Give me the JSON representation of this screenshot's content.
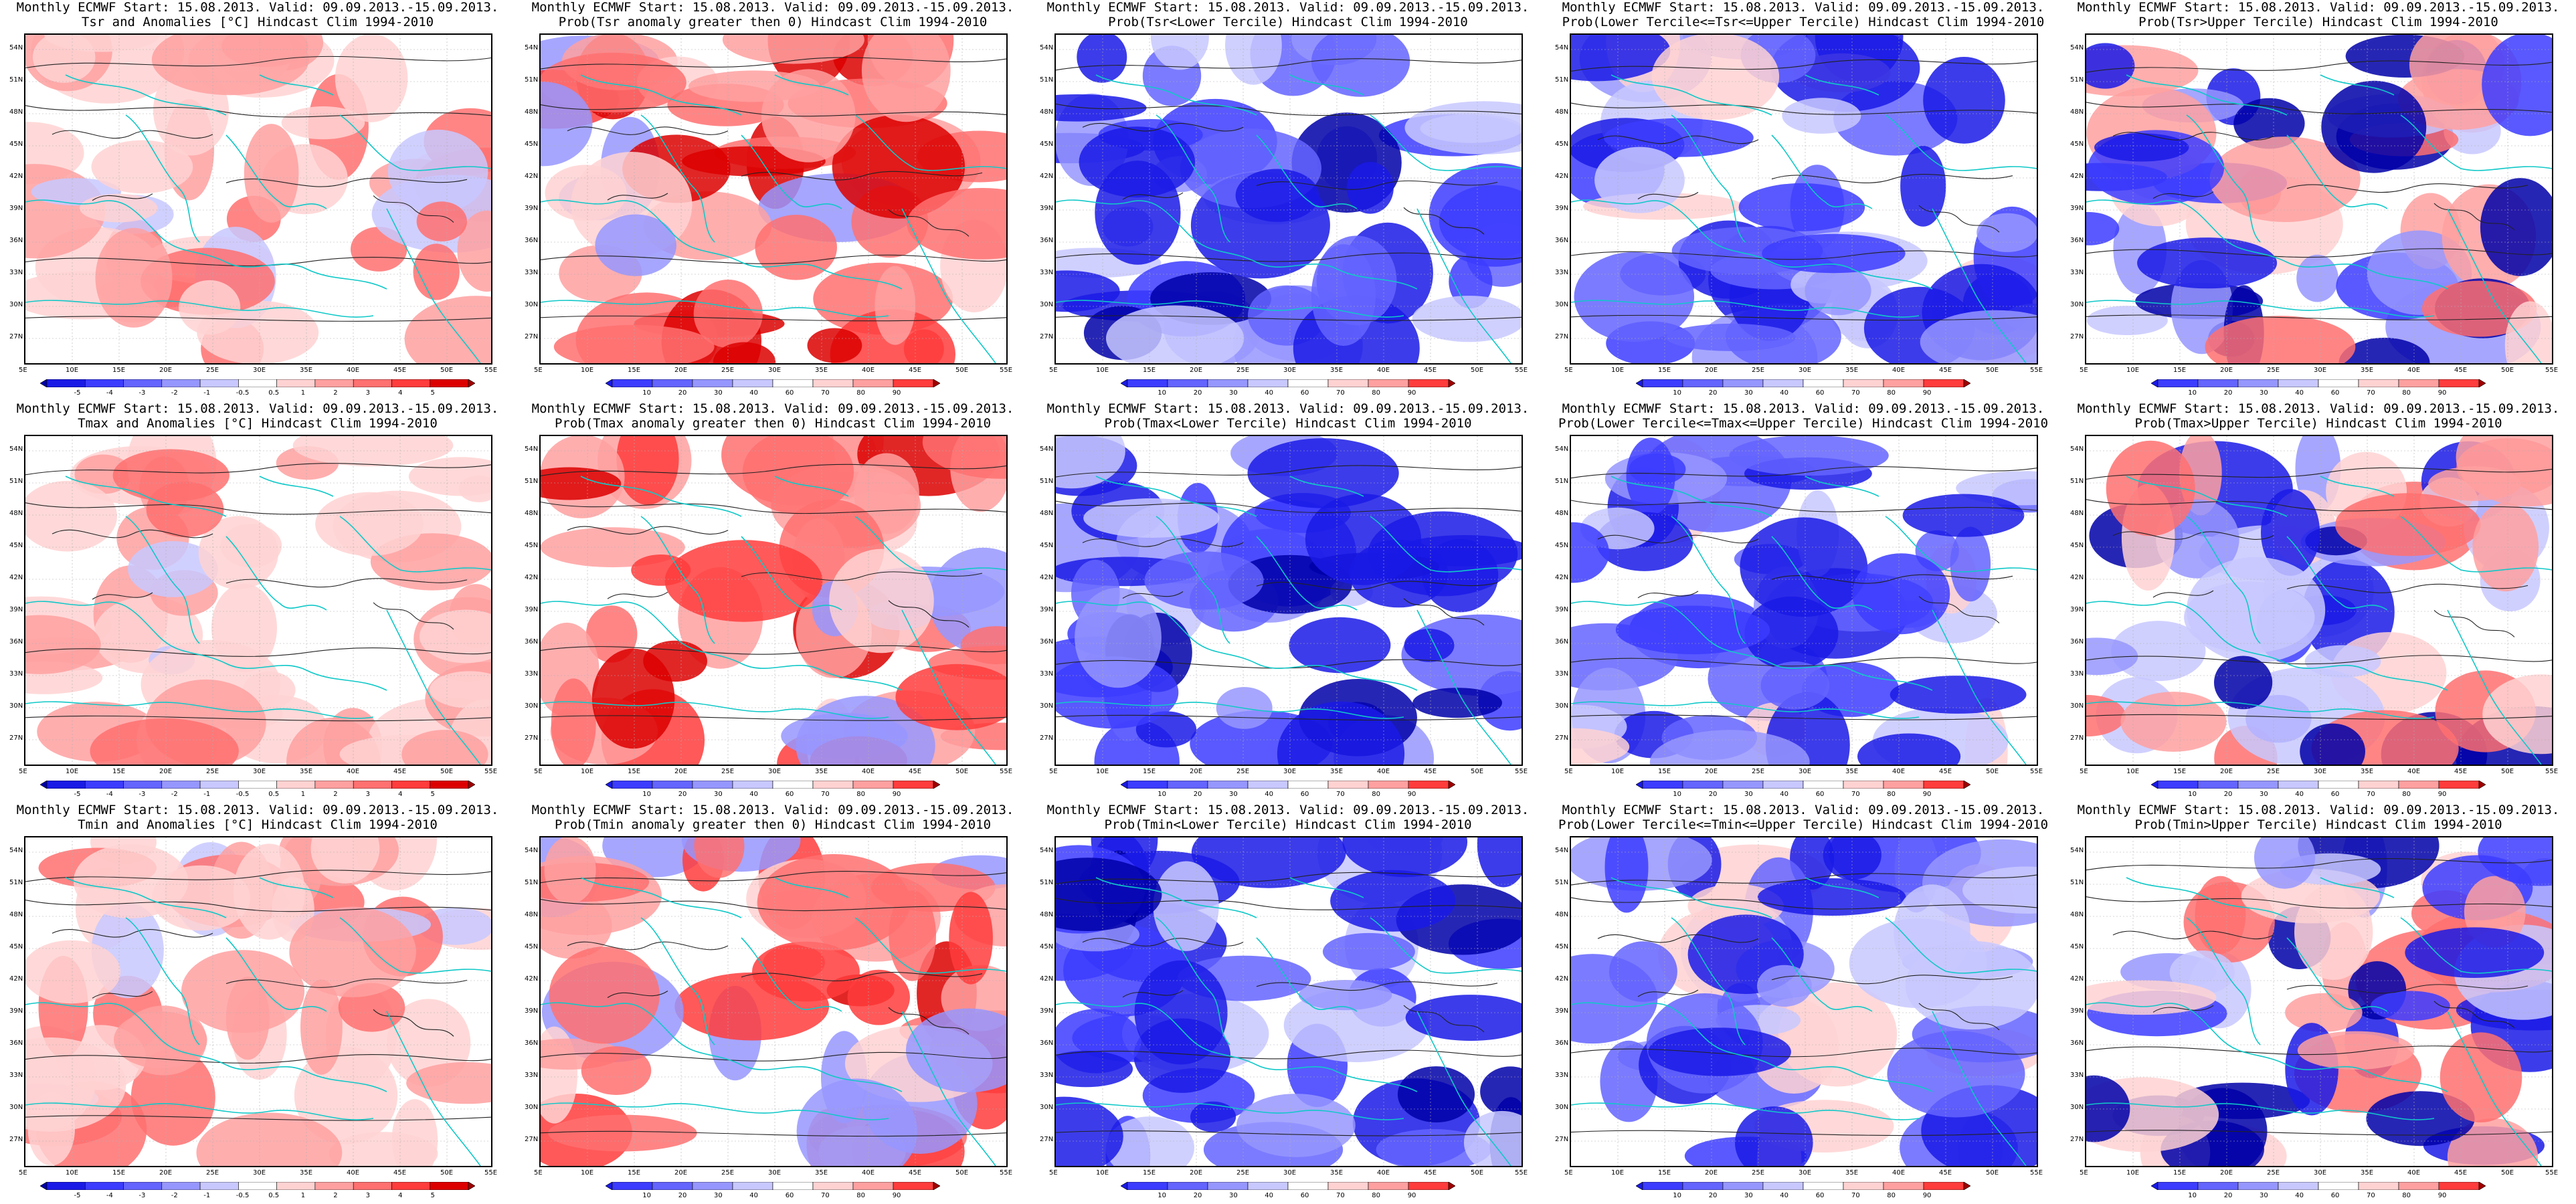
{
  "colors": {
    "coast": "#10c8c8",
    "contour": "#222222",
    "neg": [
      "#0000a8",
      "#1a1ae6",
      "#3c3cff",
      "#6464ff",
      "#9696ff",
      "#c8c8ff"
    ],
    "pos": [
      "#ffd2d2",
      "#ffa0a0",
      "#ff7070",
      "#ff3c3c",
      "#dc0000",
      "#a00000"
    ]
  },
  "lat_labels": [
    "54N",
    "51N",
    "48N",
    "45N",
    "42N",
    "39N",
    "36N",
    "33N",
    "30N",
    "27N"
  ],
  "lon_labels": [
    "5E",
    "10E",
    "15E",
    "20E",
    "25E",
    "30E",
    "35E",
    "40E",
    "45E",
    "50E",
    "55E"
  ],
  "anomaly_scale": [
    "-5",
    "-4",
    "-3",
    "-2",
    "-1",
    "-0.5",
    "0.5",
    "1",
    "2",
    "3",
    "4",
    "5"
  ],
  "anomaly_scale_alt": [
    "-5",
    "-4",
    "-3",
    "-2",
    "-1",
    "-0.5",
    "0.5",
    "1",
    "2",
    "3",
    "4",
    "5"
  ],
  "prob_scale": [
    "10",
    "20",
    "30",
    "40",
    "60",
    "70",
    "80",
    "90"
  ],
  "panels": [
    {
      "title1": "Monthly ECMWF Start: 15.08.2013. Valid: 09.09.2013.-15.09.2013.",
      "title2": "Tsr and Anomalies [°C] Hindcast Clim 1994-2010",
      "scale": "anomaly",
      "field": "anom"
    },
    {
      "title1": "Monthly ECMWF Start: 15.08.2013. Valid: 09.09.2013.-15.09.2013.",
      "title2": "Prob(Tsr anomaly greater then 0) Hindcast Clim 1994-2010",
      "scale": "prob",
      "field": "pos"
    },
    {
      "title1": "Monthly ECMWF Start: 15.08.2013. Valid: 09.09.2013.-15.09.2013.",
      "title2": "Prob(Tsr<Lower Tercile) Hindcast Clim 1994-2010",
      "scale": "prob",
      "field": "lower"
    },
    {
      "title1": "Monthly ECMWF Start: 15.08.2013. Valid: 09.09.2013.-15.09.2013.",
      "title2": "Prob(Lower Tercile<=Tsr<=Upper Tercile) Hindcast Clim 1994-2010",
      "scale": "prob",
      "field": "mid"
    },
    {
      "title1": "Monthly ECMWF Start: 15.08.2013. Valid: 09.09.2013.-15.09.2013.",
      "title2": "Prob(Tsr>Upper Tercile) Hindcast Clim 1994-2010",
      "scale": "prob",
      "field": "upper"
    },
    {
      "title1": "Monthly ECMWF Start: 15.08.2013. Valid: 09.09.2013.-15.09.2013.",
      "title2": "Tmax and Anomalies [°C] Hindcast Clim 1994-2010",
      "scale": "anomaly",
      "field": "anom"
    },
    {
      "title1": "Monthly ECMWF Start: 15.08.2013. Valid: 09.09.2013.-15.09.2013.",
      "title2": "Prob(Tmax anomaly greater then 0) Hindcast Clim 1994-2010",
      "scale": "prob",
      "field": "pos"
    },
    {
      "title1": "Monthly ECMWF Start: 15.08.2013. Valid: 09.09.2013.-15.09.2013.",
      "title2": "Prob(Tmax<Lower Tercile) Hindcast Clim 1994-2010",
      "scale": "prob",
      "field": "lower"
    },
    {
      "title1": "Monthly ECMWF Start: 15.08.2013. Valid: 09.09.2013.-15.09.2013.",
      "title2": "Prob(Lower Tercile<=Tmax<=Upper Tercile) Hindcast Clim 1994-2010",
      "scale": "prob",
      "field": "mid"
    },
    {
      "title1": "Monthly ECMWF Start: 15.08.2013. Valid: 09.09.2013.-15.09.2013.",
      "title2": "Prob(Tmax>Upper Tercile) Hindcast Clim 1994-2010",
      "scale": "prob",
      "field": "upper"
    },
    {
      "title1": "Monthly ECMWF Start: 15.08.2013. Valid: 09.09.2013.-15.09.2013.",
      "title2": "Tmin and Anomalies [°C] Hindcast Clim 1994-2010",
      "scale": "anomaly",
      "field": "anom"
    },
    {
      "title1": "Monthly ECMWF Start: 15.08.2013. Valid: 09.09.2013.-15.09.2013.",
      "title2": "Prob(Tmin anomaly greater then 0) Hindcast Clim 1994-2010",
      "scale": "prob",
      "field": "pos"
    },
    {
      "title1": "Monthly ECMWF Start: 15.08.2013. Valid: 09.09.2013.-15.09.2013.",
      "title2": "Prob(Tmin<Lower Tercile) Hindcast Clim 1994-2010",
      "scale": "prob",
      "field": "lower"
    },
    {
      "title1": "Monthly ECMWF Start: 15.08.2013. Valid: 09.09.2013.-15.09.2013.",
      "title2": "Prob(Lower Tercile<=Tmin<=Upper Tercile) Hindcast Clim 1994-2010",
      "scale": "prob",
      "field": "mid"
    },
    {
      "title1": "Monthly ECMWF Start: 15.08.2013. Valid: 09.09.2013.-15.09.2013.",
      "title2": "Prob(Tmin>Upper Tercile) Hindcast Clim 1994-2010",
      "scale": "prob",
      "field": "upper"
    }
  ]
}
